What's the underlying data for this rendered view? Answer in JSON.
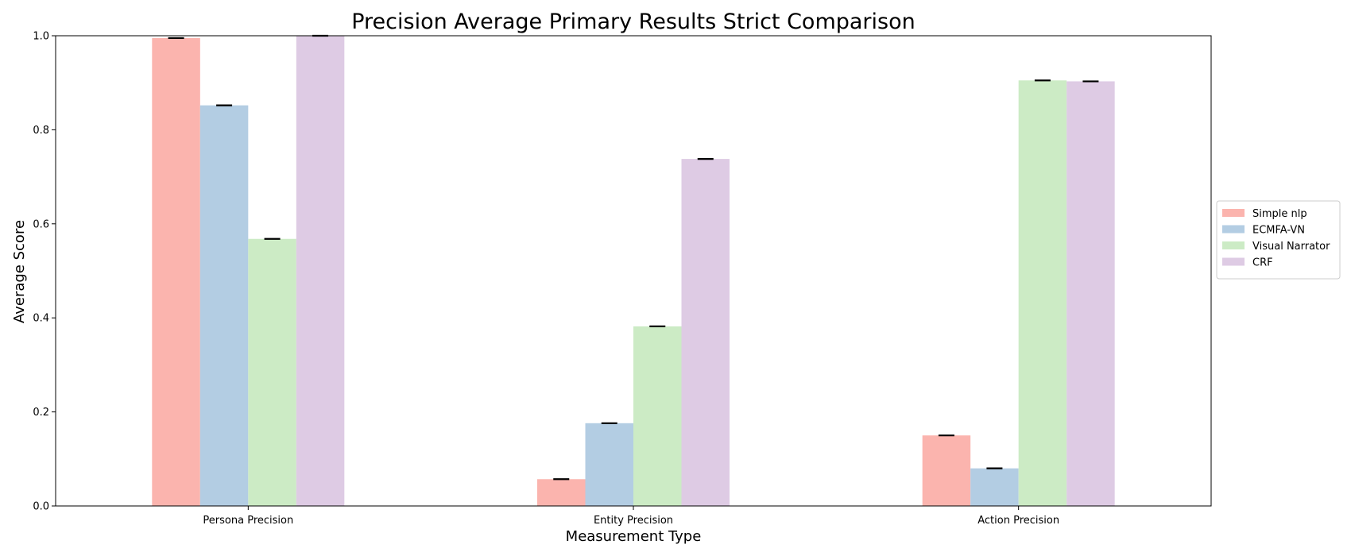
{
  "chart_data": {
    "type": "bar",
    "title": "Precision Average Primary Results Strict Comparison",
    "xlabel": "Measurement Type",
    "ylabel": "Average Score",
    "categories": [
      "Persona Precision",
      "Entity Precision",
      "Action Precision"
    ],
    "ylim": [
      0,
      1.0
    ],
    "yticks": [
      "0.0",
      "0.2",
      "0.4",
      "0.6",
      "0.8",
      "1.0"
    ],
    "grid": false,
    "legend_position": "right",
    "series": [
      {
        "name": "Simple nlp",
        "color": "#fbb4ae",
        "values": [
          0.995,
          0.057,
          0.15
        ]
      },
      {
        "name": "ECMFA-VN",
        "color": "#b3cde3",
        "values": [
          0.852,
          0.176,
          0.08
        ]
      },
      {
        "name": "Visual Narrator",
        "color": "#ccebc5",
        "values": [
          0.568,
          0.382,
          0.905
        ]
      },
      {
        "name": "CRF",
        "color": "#decbe4",
        "values": [
          1.0,
          0.738,
          0.903
        ]
      }
    ]
  }
}
